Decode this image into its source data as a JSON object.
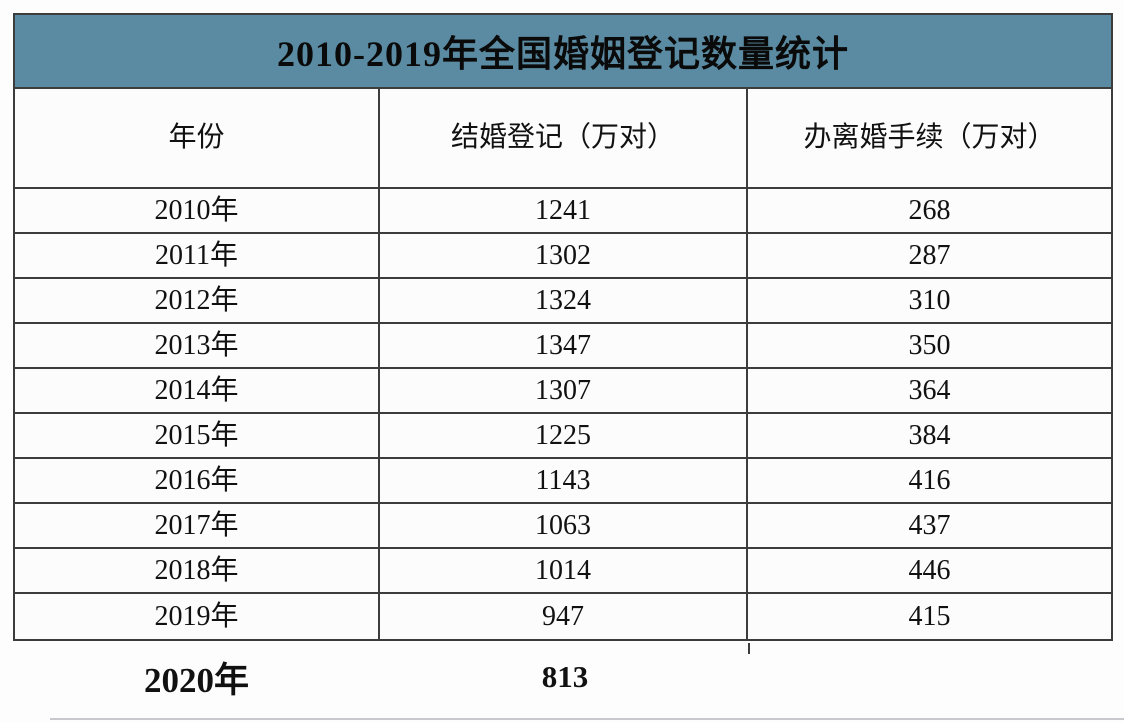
{
  "title": "2010-2019年全国婚姻登记数量统计",
  "table": {
    "headers": [
      "年份",
      "结婚登记（万对）",
      "办离婚手续（万对）"
    ],
    "rows": [
      {
        "year": "2010年",
        "marriage": "1241",
        "divorce": "268"
      },
      {
        "year": "2011年",
        "marriage": "1302",
        "divorce": "287"
      },
      {
        "year": "2012年",
        "marriage": "1324",
        "divorce": "310"
      },
      {
        "year": "2013年",
        "marriage": "1347",
        "divorce": "350"
      },
      {
        "year": "2014年",
        "marriage": "1307",
        "divorce": "364"
      },
      {
        "year": "2015年",
        "marriage": "1225",
        "divorce": "384"
      },
      {
        "year": "2016年",
        "marriage": "1143",
        "divorce": "416"
      },
      {
        "year": "2017年",
        "marriage": "1063",
        "divorce": "437"
      },
      {
        "year": "2018年",
        "marriage": "1014",
        "divorce": "446"
      },
      {
        "year": "2019年",
        "marriage": "947",
        "divorce": "415"
      }
    ],
    "footer": {
      "year": "2020年",
      "marriage": "813",
      "divorce": ""
    }
  },
  "chart_data": {
    "type": "table",
    "title": "2010-2019年全国婚姻登记数量统计",
    "columns": [
      "年份",
      "结婚登记（万对）",
      "办离婚手续（万对）"
    ],
    "rows": [
      [
        "2010年",
        1241,
        268
      ],
      [
        "2011年",
        1302,
        287
      ],
      [
        "2012年",
        1324,
        310
      ],
      [
        "2013年",
        1347,
        350
      ],
      [
        "2014年",
        1307,
        364
      ],
      [
        "2015年",
        1225,
        384
      ],
      [
        "2016年",
        1143,
        416
      ],
      [
        "2017年",
        1063,
        437
      ],
      [
        "2018年",
        1014,
        446
      ],
      [
        "2019年",
        947,
        415
      ],
      [
        "2020年",
        813,
        null
      ]
    ]
  },
  "colors": {
    "title_bar_bg": "#5a8ba2",
    "border": "#3c3c3c",
    "text": "#111111",
    "page_bg": "#fdfdfe",
    "faint_line": "#c9c9cd"
  }
}
